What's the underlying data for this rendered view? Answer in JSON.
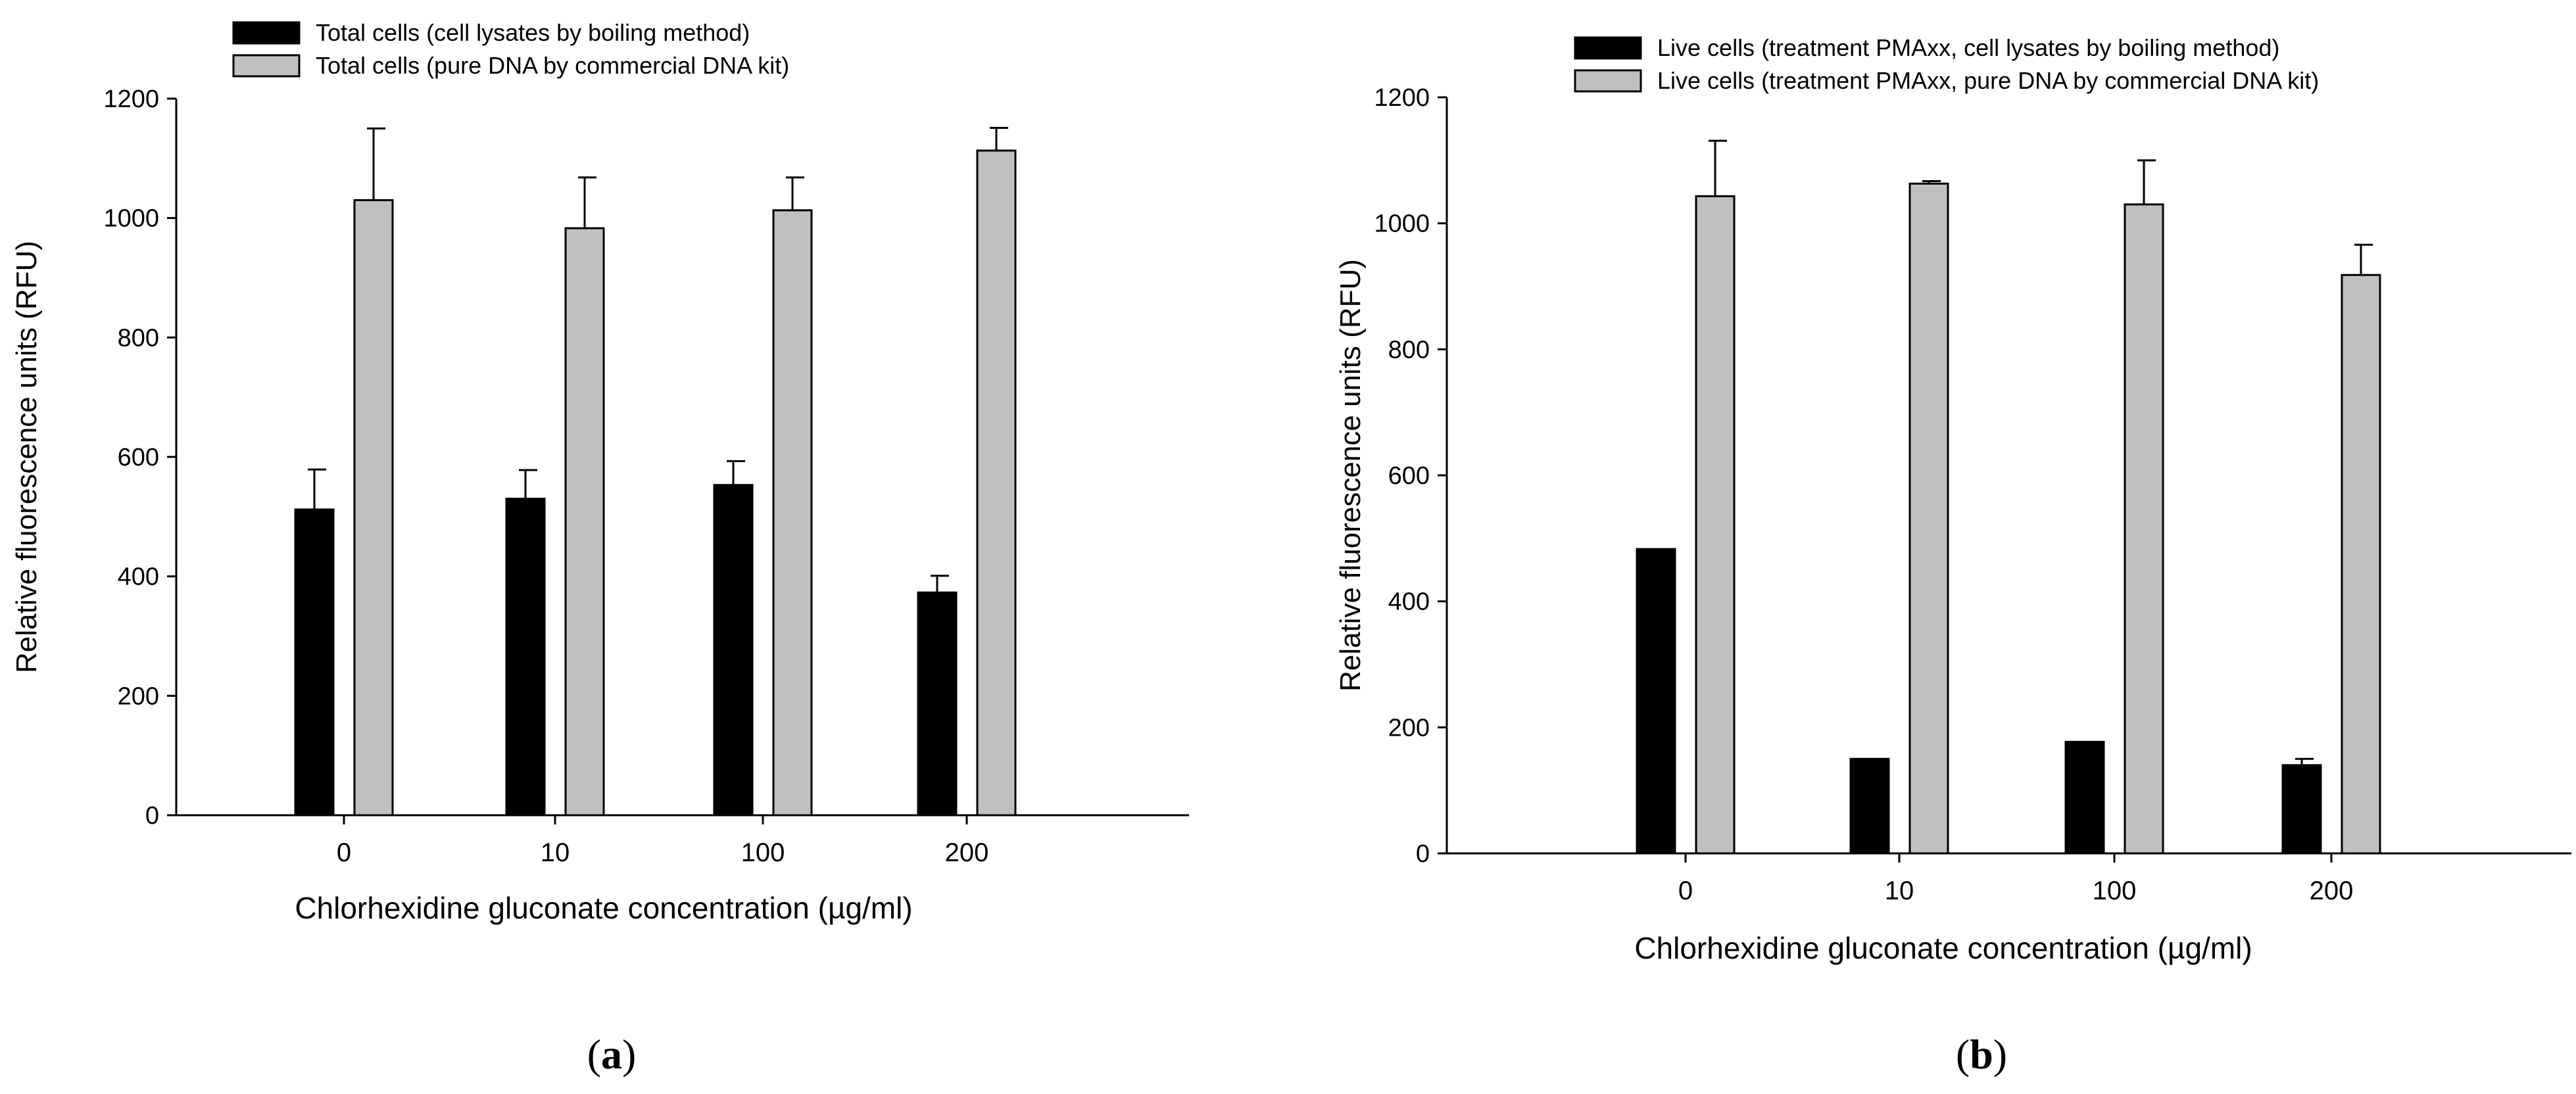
{
  "figure": {
    "background": "#ffffff",
    "colors": {
      "series1": "#000000",
      "series2": "#c0c0c0",
      "axis": "#000000"
    }
  },
  "chart_data": [
    {
      "panel_label": "(a)",
      "panel_letter": "a",
      "type": "bar",
      "xlabel": "Chlorhexidine gluconate concentration (µg/ml)",
      "ylabel": "Relative fluorescence units (RFU)",
      "categories": [
        "0",
        "10",
        "100",
        "200"
      ],
      "ylim": [
        0,
        1200
      ],
      "yticks": [
        0,
        200,
        400,
        600,
        800,
        1000,
        1200
      ],
      "legend_position": "top-left",
      "series": [
        {
          "name": "Total cells (cell lysates by boiling method)",
          "color": "#000000",
          "values": [
            512,
            530,
            553,
            373
          ],
          "errors": [
            67,
            48,
            40,
            28
          ]
        },
        {
          "name": "Total cells (pure DNA by commercial DNA kit)",
          "color": "#c0c0c0",
          "values": [
            1030,
            983,
            1013,
            1113
          ],
          "errors": [
            120,
            85,
            55,
            38
          ]
        }
      ]
    },
    {
      "panel_label": "(b)",
      "panel_letter": "b",
      "type": "bar",
      "xlabel": "Chlorhexidine gluconate concentration (µg/ml)",
      "ylabel": "Relative fluorescence units (RFU)",
      "categories": [
        "0",
        "10",
        "100",
        "200"
      ],
      "ylim": [
        0,
        1200
      ],
      "yticks": [
        0,
        200,
        400,
        600,
        800,
        1000,
        1200
      ],
      "legend_position": "top-left",
      "series": [
        {
          "name": "Live cells (treatment PMAxx, cell lysates by boiling method)",
          "color": "#000000",
          "values": [
            483,
            150,
            177,
            140
          ],
          "errors": [
            0,
            0,
            0,
            10
          ]
        },
        {
          "name": "Live cells (treatment PMAxx, pure DNA by commercial DNA kit)",
          "color": "#c0c0c0",
          "values": [
            1043,
            1063,
            1030,
            918
          ],
          "errors": [
            88,
            4,
            70,
            48
          ]
        }
      ]
    }
  ]
}
